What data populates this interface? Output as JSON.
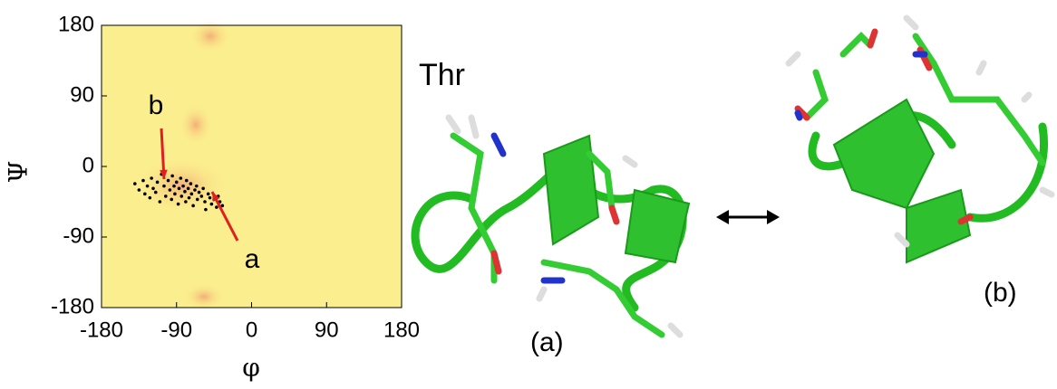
{
  "chart_data": {
    "type": "scatter",
    "x_label": "φ",
    "y_label": "Ψ",
    "x": [
      -140,
      -135,
      -130,
      -128,
      -125,
      -122,
      -120,
      -118,
      -115,
      -113,
      -110,
      -108,
      -105,
      -103,
      -100,
      -98,
      -96,
      -95,
      -93,
      -92,
      -90,
      -88,
      -87,
      -85,
      -84,
      -82,
      -80,
      -79,
      -78,
      -76,
      -75,
      -73,
      -72,
      -70,
      -68,
      -66,
      -65,
      -63,
      -60,
      -58,
      -56,
      -55,
      -52,
      -50,
      -48,
      -45,
      -42,
      -40,
      -38,
      -35
    ],
    "values": [
      -22,
      -30,
      -18,
      -35,
      -25,
      -40,
      -15,
      -28,
      -33,
      -20,
      -45,
      -10,
      -25,
      -38,
      -18,
      -30,
      -42,
      -12,
      -25,
      -35,
      -20,
      -48,
      -28,
      -15,
      -38,
      -25,
      -32,
      -45,
      -18,
      -28,
      -40,
      -22,
      -35,
      -50,
      -30,
      -25,
      -42,
      -33,
      -38,
      -28,
      -45,
      -55,
      -35,
      -40,
      -48,
      -42,
      -52,
      -38,
      -45,
      -50
    ],
    "color": "#000000",
    "xlim": [
      -180,
      180
    ],
    "xticks": [
      -180,
      -90,
      0,
      90,
      180
    ],
    "ylim": [
      -180,
      180
    ],
    "yticks": [
      -180,
      -90,
      0,
      90,
      180
    ],
    "annotations": [
      "b",
      "a"
    ],
    "panel_labels": {
      "residue": "Thr",
      "a": "(a)",
      "b": "(b)"
    }
  }
}
